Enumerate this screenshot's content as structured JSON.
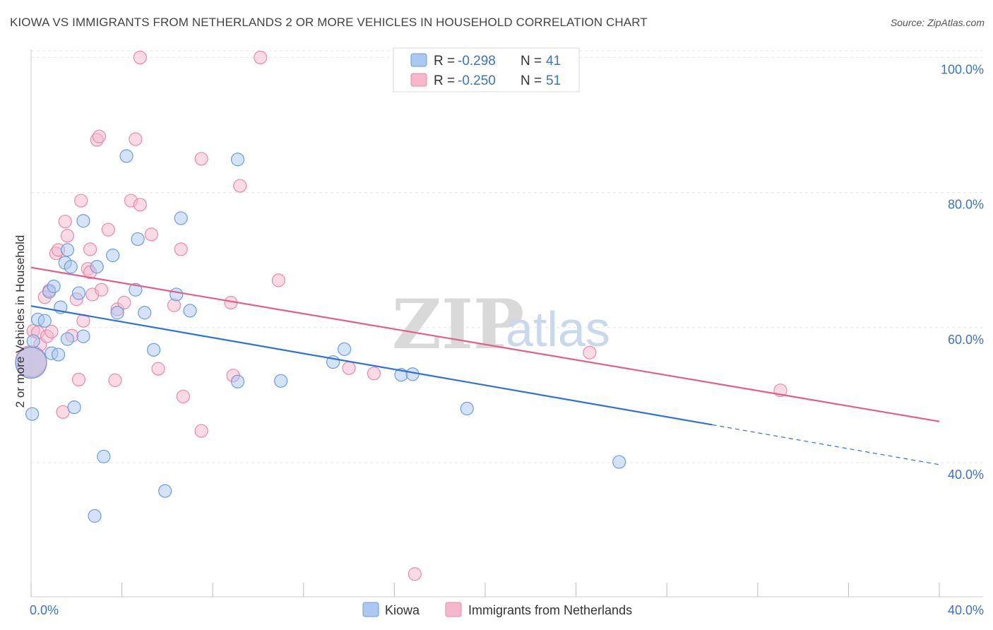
{
  "title": "KIOWA VS IMMIGRANTS FROM NETHERLANDS 2 OR MORE VEHICLES IN HOUSEHOLD CORRELATION CHART",
  "source": "Source: ZipAtlas.com",
  "watermark": {
    "zip": "ZIP",
    "atlas": "atlas"
  },
  "colors": {
    "kiowa_fill": "#aac8f0",
    "kiowa_stroke": "#6b9de0",
    "kiowa_line": "#2f72d0",
    "neth_fill": "#f5b8cb",
    "neth_stroke": "#e88aa8",
    "neth_line": "#e0608a",
    "axis_label": "#3a74c4",
    "grid": "#e6e6e6"
  },
  "legend": {
    "kiowa": {
      "r_label": "R =",
      "r_value": "-0.298",
      "n_label": "N =",
      "n_value": "41"
    },
    "neth": {
      "r_label": "R =",
      "r_value": "-0.250",
      "n_label": "N =",
      "n_value": "51"
    }
  },
  "chart_data": {
    "type": "scatter",
    "title": "KIOWA VS IMMIGRANTS FROM NETHERLANDS 2 OR MORE VEHICLES IN HOUSEHOLD CORRELATION CHART",
    "xlabel": "",
    "ylabel": "2 or more Vehicles in Household",
    "xlim": [
      0,
      40
    ],
    "ylim": [
      20,
      102
    ],
    "x_tick_labels": [
      "0.0%",
      "40.0%"
    ],
    "y_ticks": [
      40,
      60,
      80,
      100
    ],
    "y_tick_labels": [
      "40.0%",
      "60.0%",
      "80.0%",
      "100.0%"
    ],
    "grid": true,
    "legend_position": "top-center",
    "series": [
      {
        "name": "Kiowa",
        "trend": {
          "x0": 0,
          "y0": 63.2,
          "x1": 30,
          "y1": 45.6,
          "dash_x1": 40,
          "dash_y1": 39.7
        },
        "points": [
          [
            0.05,
            47.2
          ],
          [
            0.1,
            58.0
          ],
          [
            0.3,
            61.2
          ],
          [
            0.6,
            61.0
          ],
          [
            0.8,
            65.3
          ],
          [
            0.9,
            56.2
          ],
          [
            1.0,
            66.1
          ],
          [
            1.2,
            56.0
          ],
          [
            1.3,
            63.0
          ],
          [
            1.5,
            69.6
          ],
          [
            1.6,
            71.5
          ],
          [
            1.6,
            58.3
          ],
          [
            1.75,
            69.0
          ],
          [
            1.9,
            48.2
          ],
          [
            2.1,
            65.1
          ],
          [
            2.3,
            75.8
          ],
          [
            2.3,
            58.7
          ],
          [
            2.8,
            32.1
          ],
          [
            2.9,
            69.0
          ],
          [
            3.2,
            40.9
          ],
          [
            3.6,
            70.7
          ],
          [
            3.8,
            62.2
          ],
          [
            4.2,
            85.4
          ],
          [
            4.6,
            65.6
          ],
          [
            4.7,
            73.1
          ],
          [
            5.0,
            62.2
          ],
          [
            5.4,
            56.7
          ],
          [
            5.9,
            35.8
          ],
          [
            6.4,
            64.9
          ],
          [
            6.6,
            76.2
          ],
          [
            7.0,
            62.5
          ],
          [
            9.1,
            84.9
          ],
          [
            9.1,
            52.0
          ],
          [
            11.0,
            52.1
          ],
          [
            13.3,
            54.9
          ],
          [
            13.8,
            56.8
          ],
          [
            16.3,
            53.0
          ],
          [
            16.8,
            53.1
          ],
          [
            19.2,
            48.0
          ],
          [
            25.9,
            40.1
          ],
          [
            0.0,
            54.8
          ]
        ]
      },
      {
        "name": "Immigrants from Netherlands",
        "trend": {
          "x0": 0,
          "y0": 68.9,
          "x1": 40,
          "y1": 46.1
        },
        "points": [
          [
            0.1,
            59.5
          ],
          [
            0.3,
            59.3
          ],
          [
            0.4,
            57.5
          ],
          [
            0.6,
            64.5
          ],
          [
            0.7,
            58.7
          ],
          [
            0.8,
            65.5
          ],
          [
            0.9,
            59.4
          ],
          [
            1.1,
            71.0
          ],
          [
            1.2,
            71.5
          ],
          [
            1.4,
            47.5
          ],
          [
            1.5,
            75.7
          ],
          [
            1.6,
            73.6
          ],
          [
            1.8,
            58.8
          ],
          [
            2.0,
            64.2
          ],
          [
            2.1,
            52.3
          ],
          [
            2.2,
            78.8
          ],
          [
            2.3,
            61.0
          ],
          [
            2.5,
            68.7
          ],
          [
            2.6,
            68.2
          ],
          [
            2.6,
            71.6
          ],
          [
            2.7,
            64.9
          ],
          [
            2.9,
            87.8
          ],
          [
            3.0,
            88.3
          ],
          [
            3.1,
            65.6
          ],
          [
            3.4,
            74.5
          ],
          [
            3.7,
            52.2
          ],
          [
            3.8,
            62.7
          ],
          [
            4.1,
            63.7
          ],
          [
            4.4,
            78.8
          ],
          [
            4.6,
            87.9
          ],
          [
            4.8,
            78.2
          ],
          [
            4.8,
            100.0
          ],
          [
            5.3,
            73.8
          ],
          [
            5.6,
            53.9
          ],
          [
            6.3,
            63.3
          ],
          [
            6.6,
            71.6
          ],
          [
            6.7,
            49.8
          ],
          [
            7.5,
            44.7
          ],
          [
            7.5,
            85.0
          ],
          [
            8.8,
            63.7
          ],
          [
            8.9,
            52.9
          ],
          [
            9.2,
            81.0
          ],
          [
            10.1,
            100.0
          ],
          [
            10.9,
            67.0
          ],
          [
            14.0,
            54.0
          ],
          [
            15.1,
            53.2
          ],
          [
            16.9,
            23.5
          ],
          [
            24.6,
            56.3
          ],
          [
            33.0,
            50.7
          ],
          [
            0.0,
            54.8
          ],
          [
            0.0,
            55.0
          ]
        ]
      }
    ]
  }
}
